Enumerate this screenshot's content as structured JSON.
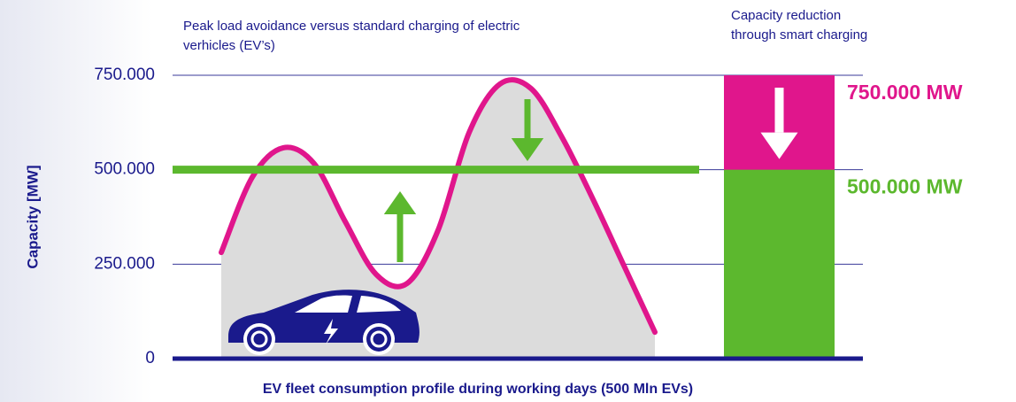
{
  "chart_data": {
    "type": "line",
    "title": [
      "Peak load avoidance versus standard charging of electric",
      "verhicles (EV’s)"
    ],
    "y_label": "Capacity [MW]",
    "x_label": "EV fleet consumption profile during working days (500 Mln EVs)",
    "ylim": [
      0,
      750000
    ],
    "yticks": [
      {
        "value": 0,
        "label": "0"
      },
      {
        "value": 250000,
        "label": "250.000"
      },
      {
        "value": 500000,
        "label": "500.000"
      },
      {
        "value": 750000,
        "label": "750.000"
      }
    ],
    "grid": true,
    "categories": [
      null,
      null,
      null,
      null,
      null,
      null,
      null,
      null,
      null,
      null,
      null,
      null,
      null,
      null,
      null
    ],
    "series": [
      {
        "color": "#e0168c",
        "values": [
          281000,
          480000,
          558000,
          516000,
          363000,
          223000,
          199000,
          340000,
          598000,
          727000,
          715000,
          586000,
          422000,
          246000,
          70000
        ]
      }
    ],
    "threshold": {
      "value": 500000,
      "color": "#5cb82e"
    },
    "bar": {
      "title": [
        "Capacity reduction",
        "through smart charging"
      ],
      "values": [
        750000,
        500000
      ],
      "value_labels": [
        "750.000 MW",
        "500.000 MW"
      ],
      "colors": [
        "#e0168c",
        "#5cb82e"
      ]
    }
  }
}
